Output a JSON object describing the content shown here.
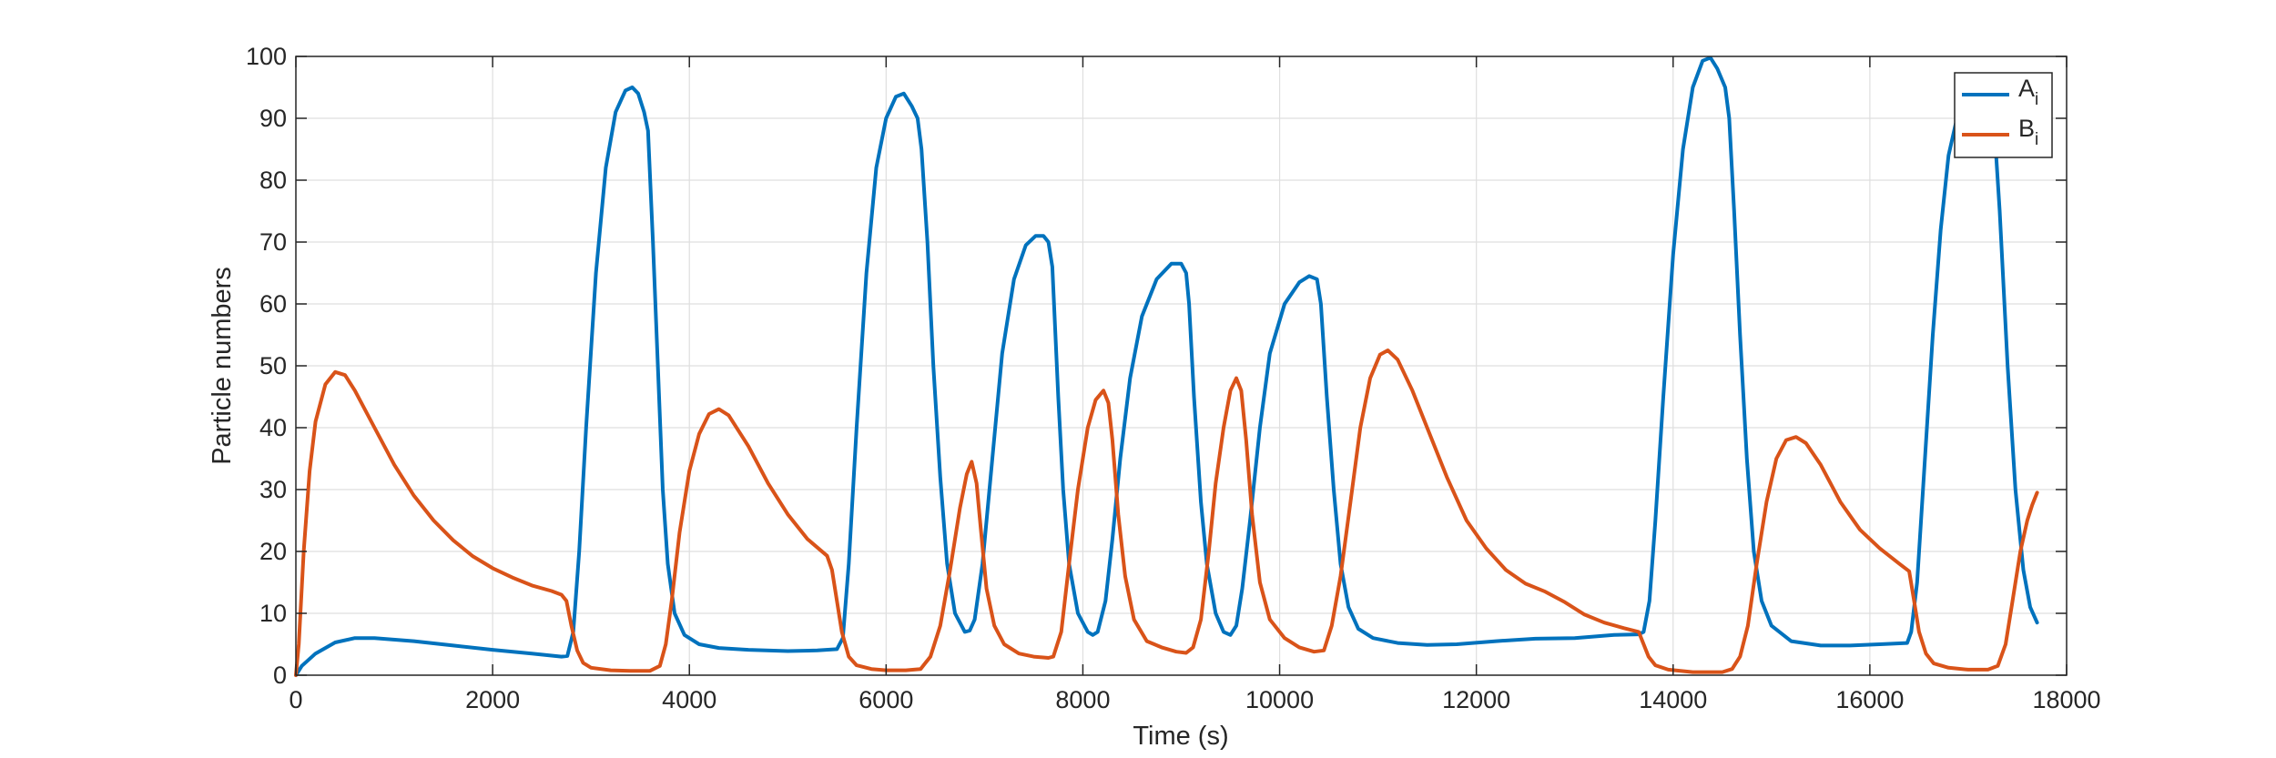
{
  "chart_data": {
    "type": "line",
    "title": "",
    "xlabel": "Time (s)",
    "ylabel": "Particle numbers",
    "xlim": [
      0,
      18000
    ],
    "ylim": [
      0,
      100
    ],
    "x_ticks": [
      0,
      2000,
      4000,
      6000,
      8000,
      10000,
      12000,
      14000,
      16000,
      18000
    ],
    "y_ticks": [
      0,
      10,
      20,
      30,
      40,
      50,
      60,
      70,
      80,
      90,
      100
    ],
    "grid": true,
    "legend_position": "top-right",
    "series": [
      {
        "name": "A",
        "name_sub": "i",
        "color": "#0072BD",
        "points": [
          [
            0,
            0
          ],
          [
            60,
            1.5
          ],
          [
            200,
            3.5
          ],
          [
            400,
            5.3
          ],
          [
            600,
            6
          ],
          [
            800,
            6
          ],
          [
            1200,
            5.5
          ],
          [
            1600,
            4.8
          ],
          [
            2000,
            4.1
          ],
          [
            2400,
            3.5
          ],
          [
            2700,
            3.0
          ],
          [
            2760,
            3.1
          ],
          [
            2820,
            7
          ],
          [
            2880,
            20
          ],
          [
            2950,
            40
          ],
          [
            3050,
            65
          ],
          [
            3150,
            82
          ],
          [
            3250,
            91
          ],
          [
            3350,
            94.5
          ],
          [
            3420,
            95
          ],
          [
            3480,
            94
          ],
          [
            3540,
            91
          ],
          [
            3580,
            88
          ],
          [
            3630,
            70
          ],
          [
            3680,
            50
          ],
          [
            3730,
            30
          ],
          [
            3780,
            18
          ],
          [
            3850,
            10
          ],
          [
            3950,
            6.5
          ],
          [
            4100,
            5
          ],
          [
            4300,
            4.4
          ],
          [
            4600,
            4.1
          ],
          [
            5000,
            3.9
          ],
          [
            5300,
            4.0
          ],
          [
            5500,
            4.2
          ],
          [
            5560,
            6
          ],
          [
            5620,
            18
          ],
          [
            5700,
            40
          ],
          [
            5800,
            65
          ],
          [
            5900,
            82
          ],
          [
            6000,
            90
          ],
          [
            6100,
            93.5
          ],
          [
            6180,
            94
          ],
          [
            6260,
            92
          ],
          [
            6320,
            90
          ],
          [
            6360,
            85
          ],
          [
            6420,
            70
          ],
          [
            6480,
            50
          ],
          [
            6550,
            32
          ],
          [
            6620,
            18
          ],
          [
            6700,
            10
          ],
          [
            6800,
            7
          ],
          [
            6850,
            7.2
          ],
          [
            6900,
            9
          ],
          [
            6980,
            18
          ],
          [
            7080,
            35
          ],
          [
            7180,
            52
          ],
          [
            7300,
            64
          ],
          [
            7420,
            69.5
          ],
          [
            7520,
            71
          ],
          [
            7600,
            71
          ],
          [
            7650,
            70
          ],
          [
            7690,
            66
          ],
          [
            7750,
            45
          ],
          [
            7800,
            30
          ],
          [
            7860,
            18
          ],
          [
            7950,
            10
          ],
          [
            8050,
            7
          ],
          [
            8100,
            6.5
          ],
          [
            8150,
            7
          ],
          [
            8230,
            12
          ],
          [
            8300,
            22
          ],
          [
            8380,
            35
          ],
          [
            8480,
            48
          ],
          [
            8600,
            58
          ],
          [
            8750,
            64
          ],
          [
            8900,
            66.5
          ],
          [
            9000,
            66.5
          ],
          [
            9050,
            65
          ],
          [
            9080,
            60
          ],
          [
            9130,
            45
          ],
          [
            9200,
            28
          ],
          [
            9260,
            18
          ],
          [
            9350,
            10
          ],
          [
            9430,
            7
          ],
          [
            9500,
            6.5
          ],
          [
            9560,
            8
          ],
          [
            9620,
            14
          ],
          [
            9700,
            25
          ],
          [
            9800,
            40
          ],
          [
            9900,
            52
          ],
          [
            10050,
            60
          ],
          [
            10200,
            63.5
          ],
          [
            10300,
            64.5
          ],
          [
            10380,
            64
          ],
          [
            10420,
            60
          ],
          [
            10480,
            45
          ],
          [
            10550,
            30
          ],
          [
            10620,
            18
          ],
          [
            10700,
            11
          ],
          [
            10800,
            7.5
          ],
          [
            10950,
            6
          ],
          [
            11200,
            5.2
          ],
          [
            11500,
            4.9
          ],
          [
            11800,
            5
          ],
          [
            12200,
            5.5
          ],
          [
            12600,
            5.9
          ],
          [
            13000,
            6
          ],
          [
            13400,
            6.5
          ],
          [
            13650,
            6.6
          ],
          [
            13700,
            7
          ],
          [
            13760,
            12
          ],
          [
            13820,
            25
          ],
          [
            13900,
            45
          ],
          [
            14000,
            68
          ],
          [
            14100,
            85
          ],
          [
            14200,
            95
          ],
          [
            14300,
            99.3
          ],
          [
            14380,
            99.8
          ],
          [
            14450,
            98
          ],
          [
            14530,
            95
          ],
          [
            14570,
            90
          ],
          [
            14620,
            75
          ],
          [
            14680,
            55
          ],
          [
            14750,
            35
          ],
          [
            14820,
            20
          ],
          [
            14900,
            12
          ],
          [
            15000,
            8
          ],
          [
            15200,
            5.5
          ],
          [
            15500,
            4.8
          ],
          [
            15800,
            4.8
          ],
          [
            16100,
            5
          ],
          [
            16380,
            5.2
          ],
          [
            16420,
            7
          ],
          [
            16480,
            15
          ],
          [
            16560,
            35
          ],
          [
            16640,
            55
          ],
          [
            16720,
            72
          ],
          [
            16800,
            84
          ],
          [
            16900,
            91
          ],
          [
            17000,
            94
          ],
          [
            17100,
            95
          ],
          [
            17200,
            94
          ],
          [
            17260,
            90
          ],
          [
            17320,
            75
          ],
          [
            17400,
            50
          ],
          [
            17480,
            30
          ],
          [
            17560,
            17
          ],
          [
            17630,
            11
          ],
          [
            17700,
            8.5
          ]
        ]
      },
      {
        "name": "B",
        "name_sub": "i",
        "color": "#D95319",
        "points": [
          [
            0,
            0
          ],
          [
            30,
            5
          ],
          [
            80,
            20
          ],
          [
            140,
            33
          ],
          [
            200,
            41
          ],
          [
            300,
            47
          ],
          [
            400,
            49
          ],
          [
            500,
            48.5
          ],
          [
            600,
            46
          ],
          [
            800,
            40
          ],
          [
            1000,
            34
          ],
          [
            1200,
            29
          ],
          [
            1400,
            25
          ],
          [
            1600,
            21.8
          ],
          [
            1800,
            19.2
          ],
          [
            2000,
            17.3
          ],
          [
            2200,
            15.8
          ],
          [
            2400,
            14.5
          ],
          [
            2600,
            13.6
          ],
          [
            2700,
            13
          ],
          [
            2750,
            12
          ],
          [
            2800,
            8
          ],
          [
            2860,
            4
          ],
          [
            2920,
            2
          ],
          [
            3000,
            1.2
          ],
          [
            3200,
            0.8
          ],
          [
            3400,
            0.7
          ],
          [
            3600,
            0.7
          ],
          [
            3700,
            1.5
          ],
          [
            3760,
            5
          ],
          [
            3820,
            12
          ],
          [
            3900,
            23
          ],
          [
            4000,
            33
          ],
          [
            4100,
            39
          ],
          [
            4200,
            42.2
          ],
          [
            4300,
            43
          ],
          [
            4400,
            42
          ],
          [
            4600,
            37
          ],
          [
            4800,
            31
          ],
          [
            5000,
            26
          ],
          [
            5200,
            22
          ],
          [
            5400,
            19.3
          ],
          [
            5450,
            17
          ],
          [
            5500,
            12
          ],
          [
            5550,
            7
          ],
          [
            5620,
            3
          ],
          [
            5700,
            1.6
          ],
          [
            5850,
            1.0
          ],
          [
            6000,
            0.8
          ],
          [
            6200,
            0.8
          ],
          [
            6350,
            1
          ],
          [
            6450,
            3
          ],
          [
            6550,
            8
          ],
          [
            6650,
            17
          ],
          [
            6750,
            27
          ],
          [
            6820,
            32.5
          ],
          [
            6870,
            34.5
          ],
          [
            6920,
            31
          ],
          [
            6960,
            24
          ],
          [
            7020,
            14
          ],
          [
            7100,
            8
          ],
          [
            7200,
            5
          ],
          [
            7350,
            3.5
          ],
          [
            7500,
            3
          ],
          [
            7650,
            2.8
          ],
          [
            7700,
            3
          ],
          [
            7780,
            7
          ],
          [
            7860,
            18
          ],
          [
            7950,
            30
          ],
          [
            8050,
            40
          ],
          [
            8130,
            44.5
          ],
          [
            8210,
            46
          ],
          [
            8260,
            44
          ],
          [
            8300,
            38
          ],
          [
            8360,
            26
          ],
          [
            8430,
            16
          ],
          [
            8520,
            9
          ],
          [
            8650,
            5.5
          ],
          [
            8800,
            4.5
          ],
          [
            8950,
            3.8
          ],
          [
            9050,
            3.6
          ],
          [
            9120,
            4.5
          ],
          [
            9200,
            9
          ],
          [
            9280,
            20
          ],
          [
            9350,
            31
          ],
          [
            9430,
            40
          ],
          [
            9500,
            46
          ],
          [
            9560,
            48
          ],
          [
            9610,
            46
          ],
          [
            9660,
            38
          ],
          [
            9720,
            26
          ],
          [
            9800,
            15
          ],
          [
            9900,
            9
          ],
          [
            10050,
            6
          ],
          [
            10200,
            4.5
          ],
          [
            10350,
            3.8
          ],
          [
            10450,
            4
          ],
          [
            10530,
            8
          ],
          [
            10620,
            16
          ],
          [
            10720,
            28
          ],
          [
            10820,
            40
          ],
          [
            10920,
            48
          ],
          [
            11020,
            51.8
          ],
          [
            11100,
            52.5
          ],
          [
            11200,
            51
          ],
          [
            11350,
            46
          ],
          [
            11500,
            40
          ],
          [
            11700,
            32
          ],
          [
            11900,
            25
          ],
          [
            12100,
            20.5
          ],
          [
            12300,
            17
          ],
          [
            12500,
            14.8
          ],
          [
            12700,
            13.5
          ],
          [
            12900,
            11.8
          ],
          [
            13100,
            9.8
          ],
          [
            13300,
            8.5
          ],
          [
            13500,
            7.6
          ],
          [
            13650,
            7
          ],
          [
            13700,
            5
          ],
          [
            13750,
            3
          ],
          [
            13820,
            1.6
          ],
          [
            13950,
            0.9
          ],
          [
            14200,
            0.5
          ],
          [
            14500,
            0.5
          ],
          [
            14600,
            1
          ],
          [
            14680,
            3
          ],
          [
            14760,
            8
          ],
          [
            14850,
            18
          ],
          [
            14950,
            28
          ],
          [
            15050,
            35
          ],
          [
            15150,
            38
          ],
          [
            15250,
            38.5
          ],
          [
            15350,
            37.5
          ],
          [
            15500,
            34
          ],
          [
            15700,
            28
          ],
          [
            15900,
            23.5
          ],
          [
            16100,
            20.5
          ],
          [
            16300,
            18
          ],
          [
            16400,
            16.8
          ],
          [
            16450,
            12
          ],
          [
            16500,
            7
          ],
          [
            16570,
            3.5
          ],
          [
            16650,
            1.9
          ],
          [
            16800,
            1.2
          ],
          [
            17000,
            0.9
          ],
          [
            17200,
            0.9
          ],
          [
            17300,
            1.5
          ],
          [
            17380,
            5
          ],
          [
            17450,
            12
          ],
          [
            17530,
            20
          ],
          [
            17600,
            25
          ],
          [
            17650,
            27.5
          ],
          [
            17700,
            29.5
          ]
        ]
      }
    ]
  }
}
